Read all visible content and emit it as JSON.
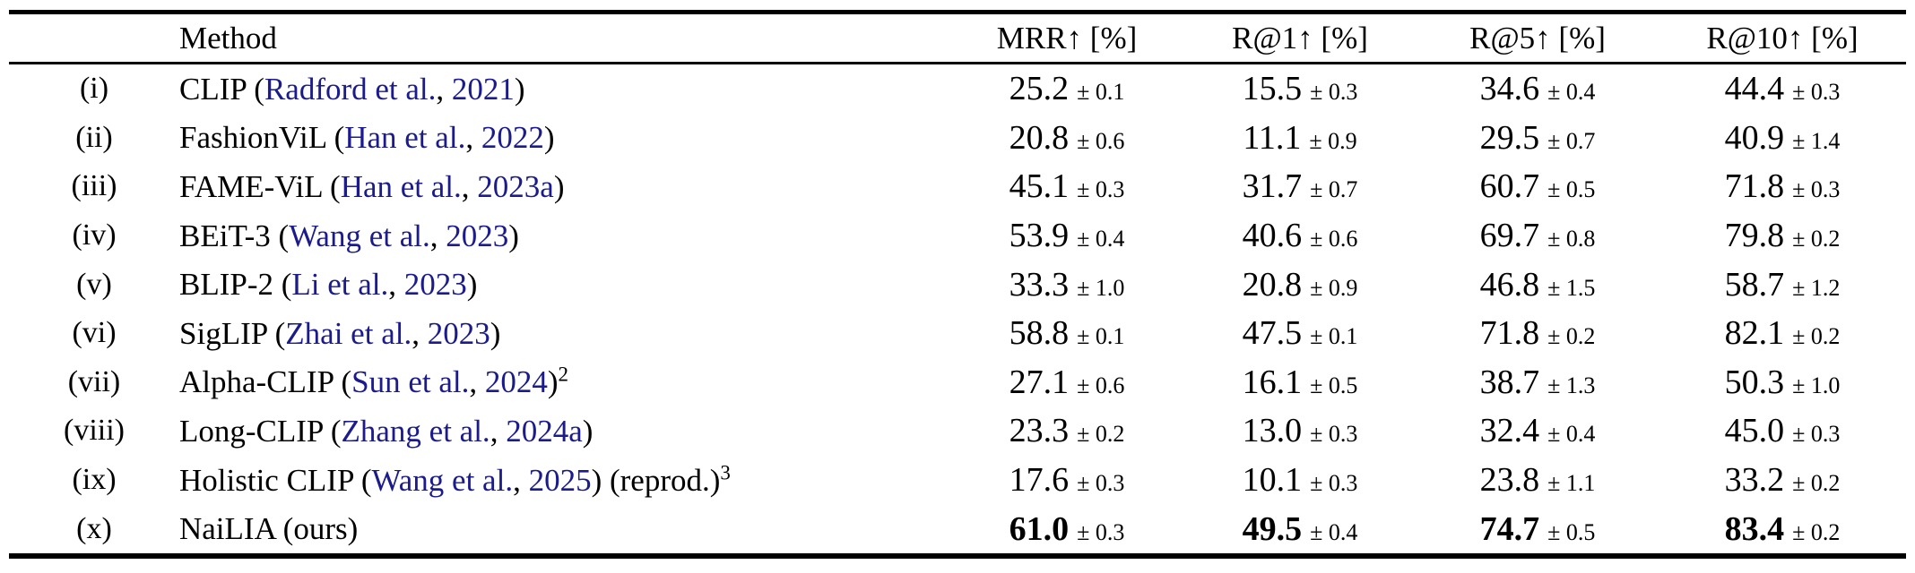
{
  "colors": {
    "background": "#ffffff",
    "text": "#000000",
    "citation_link": "#1b1b8c",
    "rule": "#000000"
  },
  "table": {
    "header": {
      "method": "Method",
      "metrics": [
        "MRR↑ [%]",
        "R@1↑ [%]",
        "R@5↑ [%]",
        "R@10↑ [%]"
      ]
    },
    "plus_minus_symbol": "±",
    "rows": [
      {
        "idx": "(i)",
        "name": "CLIP",
        "open": " (",
        "authors": "Radford et al.",
        "comma": ", ",
        "year": "2021",
        "close": ")",
        "sup": "",
        "suffix": "",
        "suffix_sup": "",
        "bold": false,
        "cells": [
          [
            "25.2",
            "0.1"
          ],
          [
            "15.5",
            "0.3"
          ],
          [
            "34.6",
            "0.4"
          ],
          [
            "44.4",
            "0.3"
          ]
        ]
      },
      {
        "idx": "(ii)",
        "name": "FashionViL",
        "open": " (",
        "authors": "Han et al.",
        "comma": ", ",
        "year": "2022",
        "close": ")",
        "sup": "",
        "suffix": "",
        "suffix_sup": "",
        "bold": false,
        "cells": [
          [
            "20.8",
            "0.6"
          ],
          [
            "11.1",
            "0.9"
          ],
          [
            "29.5",
            "0.7"
          ],
          [
            "40.9",
            "1.4"
          ]
        ]
      },
      {
        "idx": "(iii)",
        "name": "FAME-ViL",
        "open": " (",
        "authors": "Han et al.",
        "comma": ", ",
        "year": "2023a",
        "close": ")",
        "sup": "",
        "suffix": "",
        "suffix_sup": "",
        "bold": false,
        "cells": [
          [
            "45.1",
            "0.3"
          ],
          [
            "31.7",
            "0.7"
          ],
          [
            "60.7",
            "0.5"
          ],
          [
            "71.8",
            "0.3"
          ]
        ]
      },
      {
        "idx": "(iv)",
        "name": "BEiT-3",
        "open": " (",
        "authors": "Wang et al.",
        "comma": ", ",
        "year": "2023",
        "close": ")",
        "sup": "",
        "suffix": "",
        "suffix_sup": "",
        "bold": false,
        "cells": [
          [
            "53.9",
            "0.4"
          ],
          [
            "40.6",
            "0.6"
          ],
          [
            "69.7",
            "0.8"
          ],
          [
            "79.8",
            "0.2"
          ]
        ]
      },
      {
        "idx": "(v)",
        "name": "BLIP-2",
        "open": " (",
        "authors": "Li et al.",
        "comma": ", ",
        "year": "2023",
        "close": ")",
        "sup": "",
        "suffix": "",
        "suffix_sup": "",
        "bold": false,
        "cells": [
          [
            "33.3",
            "1.0"
          ],
          [
            "20.8",
            "0.9"
          ],
          [
            "46.8",
            "1.5"
          ],
          [
            "58.7",
            "1.2"
          ]
        ]
      },
      {
        "idx": "(vi)",
        "name": "SigLIP",
        "open": " (",
        "authors": "Zhai et al.",
        "comma": ", ",
        "year": "2023",
        "close": ")",
        "sup": "",
        "suffix": "",
        "suffix_sup": "",
        "bold": false,
        "cells": [
          [
            "58.8",
            "0.1"
          ],
          [
            "47.5",
            "0.1"
          ],
          [
            "71.8",
            "0.2"
          ],
          [
            "82.1",
            "0.2"
          ]
        ]
      },
      {
        "idx": "(vii)",
        "name": "Alpha-CLIP",
        "open": " (",
        "authors": "Sun et al.",
        "comma": ", ",
        "year": "2024",
        "close": ")",
        "sup": "2",
        "suffix": "",
        "suffix_sup": "",
        "bold": false,
        "cells": [
          [
            "27.1",
            "0.6"
          ],
          [
            "16.1",
            "0.5"
          ],
          [
            "38.7",
            "1.3"
          ],
          [
            "50.3",
            "1.0"
          ]
        ]
      },
      {
        "idx": "(viii)",
        "name": "Long-CLIP",
        "open": " (",
        "authors": "Zhang et al.",
        "comma": ", ",
        "year": "2024a",
        "close": ")",
        "sup": "",
        "suffix": "",
        "suffix_sup": "",
        "bold": false,
        "cells": [
          [
            "23.3",
            "0.2"
          ],
          [
            "13.0",
            "0.3"
          ],
          [
            "32.4",
            "0.4"
          ],
          [
            "45.0",
            "0.3"
          ]
        ]
      },
      {
        "idx": "(ix)",
        "name": "Holistic CLIP",
        "open": " (",
        "authors": "Wang et al.",
        "comma": ", ",
        "year": "2025",
        "close": ")",
        "sup": "",
        "suffix": " (reprod.)",
        "suffix_sup": "3",
        "bold": false,
        "cells": [
          [
            "17.6",
            "0.3"
          ],
          [
            "10.1",
            "0.3"
          ],
          [
            "23.8",
            "1.1"
          ],
          [
            "33.2",
            "0.2"
          ]
        ]
      },
      {
        "idx": "(x)",
        "name": "NaiLIA (ours)",
        "open": "",
        "authors": "",
        "comma": "",
        "year": "",
        "close": "",
        "sup": "",
        "suffix": "",
        "suffix_sup": "",
        "bold": true,
        "cells": [
          [
            "61.0",
            "0.3"
          ],
          [
            "49.5",
            "0.4"
          ],
          [
            "74.7",
            "0.5"
          ],
          [
            "83.4",
            "0.2"
          ]
        ]
      }
    ]
  }
}
